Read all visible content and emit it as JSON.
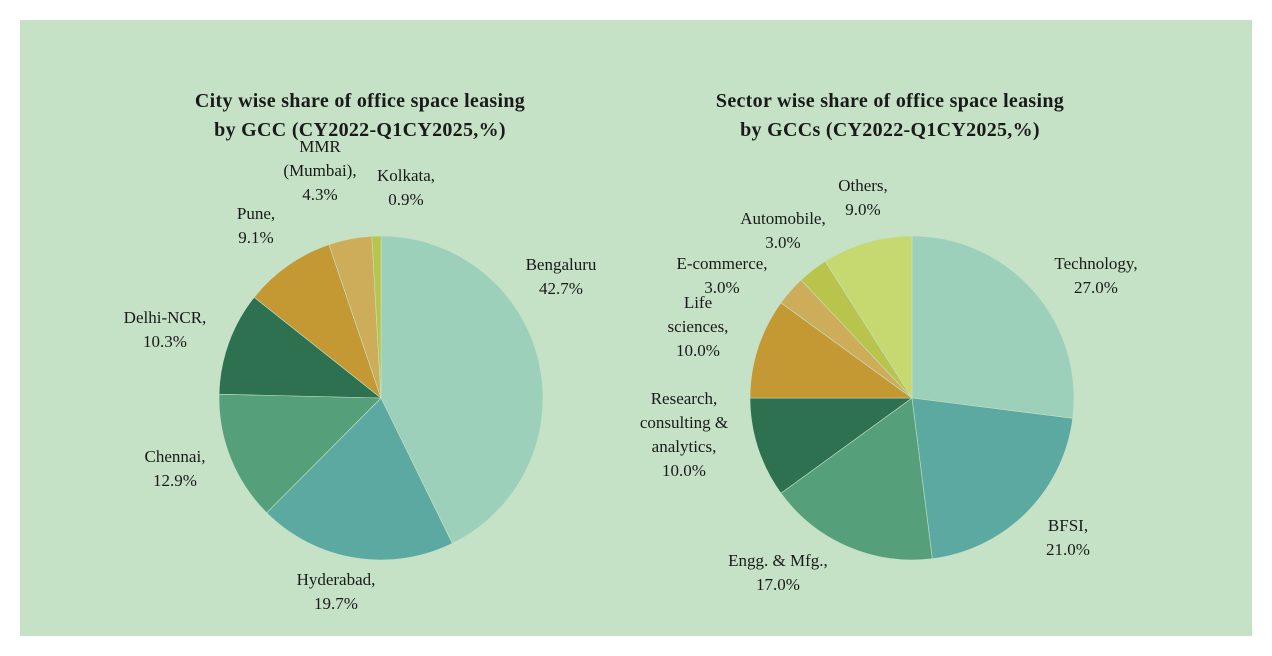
{
  "chart_data": [
    {
      "type": "pie",
      "title_lines": [
        "City wise share of office space leasing",
        "by GCC (CY2022-Q1CY2025,%)"
      ],
      "slices": [
        {
          "label_lines": [
            "Bengaluru"
          ],
          "value": 42.7,
          "value_text": "42.7%",
          "color": "#9dd0bb"
        },
        {
          "label_lines": [
            "Hyderabad,"
          ],
          "value": 19.7,
          "value_text": "19.7%",
          "color": "#5ba9a0"
        },
        {
          "label_lines": [
            "Chennai,"
          ],
          "value": 12.9,
          "value_text": "12.9%",
          "color": "#55a07b"
        },
        {
          "label_lines": [
            "Delhi-NCR,"
          ],
          "value": 10.3,
          "value_text": "10.3%",
          "color": "#2e7150"
        },
        {
          "label_lines": [
            "Pune,"
          ],
          "value": 9.1,
          "value_text": "9.1%",
          "color": "#c49832"
        },
        {
          "label_lines": [
            "MMR",
            "(Mumbai),"
          ],
          "value": 4.3,
          "value_text": "4.3%",
          "color": "#cdad5a"
        },
        {
          "label_lines": [
            "Kolkata,"
          ],
          "value": 0.9,
          "value_text": "0.9%",
          "color": "#b9c44c"
        }
      ]
    },
    {
      "type": "pie",
      "title_lines": [
        "Sector wise share of office space leasing",
        "by GCCs (CY2022-Q1CY2025,%)"
      ],
      "slices": [
        {
          "label_lines": [
            "Technology,"
          ],
          "value": 27.0,
          "value_text": "27.0%",
          "color": "#9dd0bb"
        },
        {
          "label_lines": [
            "BFSI,"
          ],
          "value": 21.0,
          "value_text": "21.0%",
          "color": "#5ba9a0"
        },
        {
          "label_lines": [
            "Engg. & Mfg.,"
          ],
          "value": 17.0,
          "value_text": "17.0%",
          "color": "#55a07b"
        },
        {
          "label_lines": [
            "Research,",
            "consulting &",
            "analytics,"
          ],
          "value": 10.0,
          "value_text": "10.0%",
          "color": "#2e7150"
        },
        {
          "label_lines": [
            "Life",
            "sciences,"
          ],
          "value": 10.0,
          "value_text": "10.0%",
          "color": "#c49832"
        },
        {
          "label_lines": [
            "E-commerce,"
          ],
          "value": 3.0,
          "value_text": "3.0%",
          "color": "#cdad5a"
        },
        {
          "label_lines": [
            "Automobile,"
          ],
          "value": 3.0,
          "value_text": "3.0%",
          "color": "#b9c44c"
        },
        {
          "label_lines": [
            "Others,"
          ],
          "value": 9.0,
          "value_text": "9.0%",
          "color": "#c6d970"
        }
      ]
    }
  ]
}
